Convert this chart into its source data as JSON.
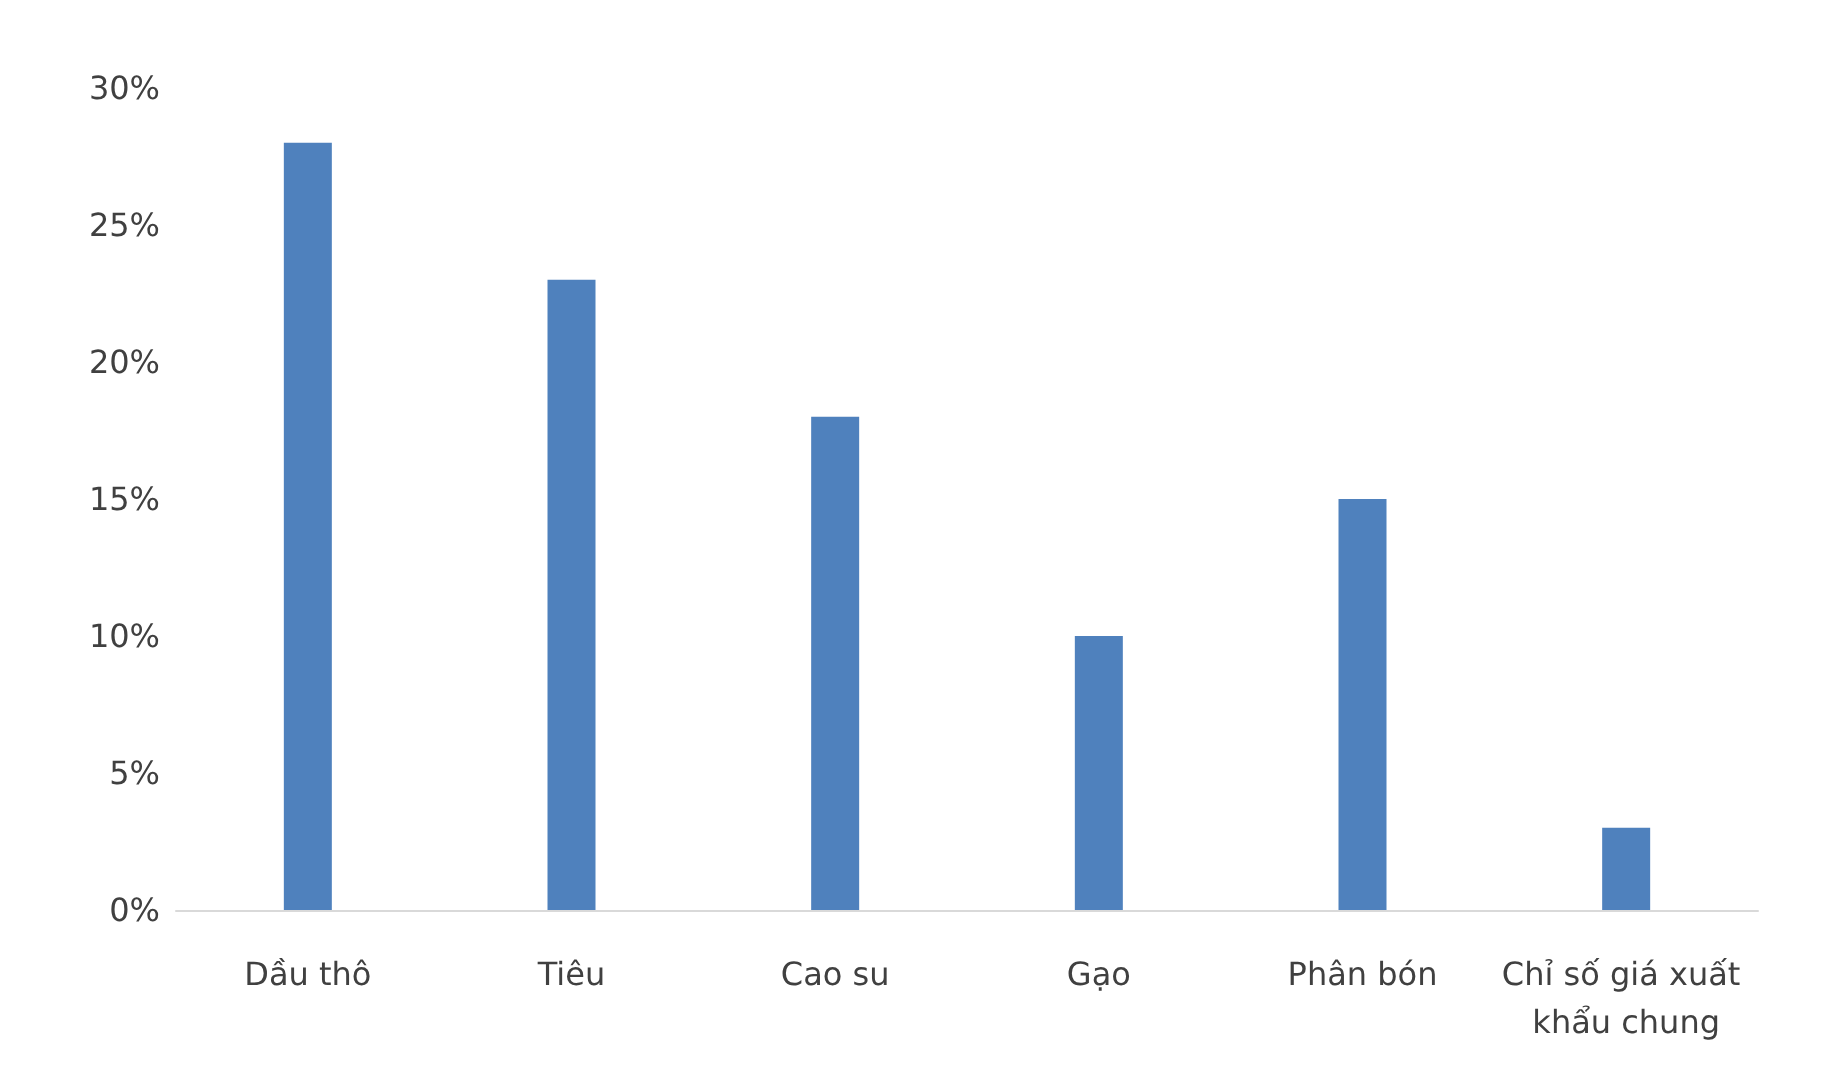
{
  "chart_data": {
    "type": "bar",
    "categories": [
      "Dầu thô",
      "Tiêu",
      "Cao su",
      "Gạo",
      "Phân bón",
      "Chỉ số giá xuất khẩu chung"
    ],
    "series": [
      {
        "color": "#4f81bd",
        "values": [
          28,
          23,
          18,
          10,
          15,
          3
        ]
      }
    ],
    "ylim": [
      0,
      30
    ],
    "yticks": [
      {
        "value": 0,
        "label": "0%"
      },
      {
        "value": 5,
        "label": "5%"
      },
      {
        "value": 10,
        "label": "10%"
      },
      {
        "value": 15,
        "label": "15%"
      },
      {
        "value": 20,
        "label": "20%"
      },
      {
        "value": 25,
        "label": "25%"
      },
      {
        "value": 30,
        "label": "30%"
      }
    ],
    "grid": false
  }
}
